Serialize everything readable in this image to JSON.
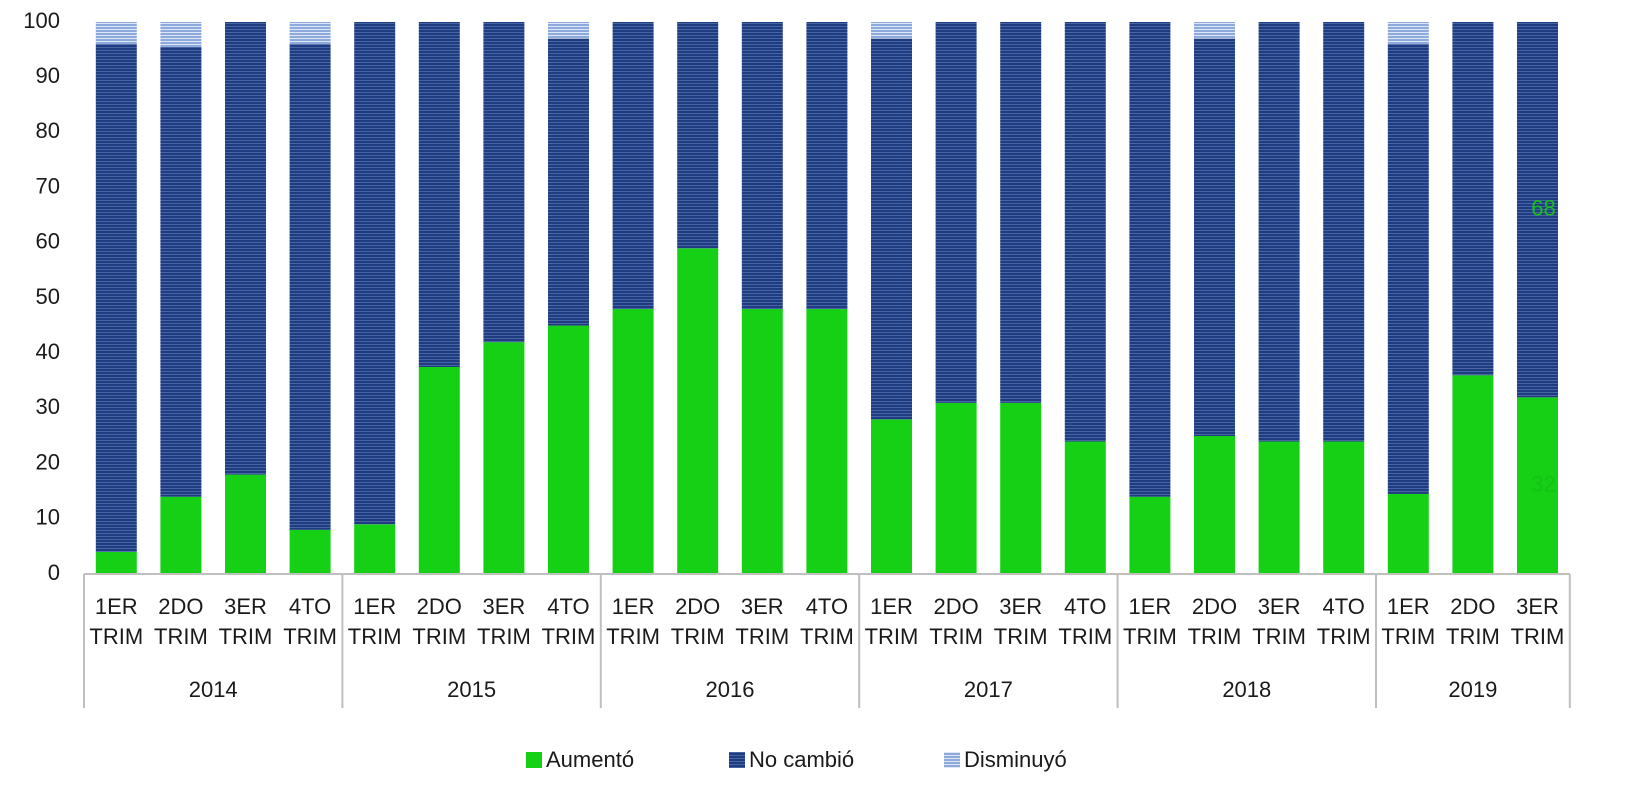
{
  "chart_data": {
    "type": "stacked_bar",
    "groups": [
      {
        "name": "2014",
        "categories": [
          "1ER TRIM",
          "2DO TRIM",
          "3ER TRIM",
          "4TO TRIM"
        ]
      },
      {
        "name": "2015",
        "categories": [
          "1ER TRIM",
          "2DO TRIM",
          "3ER TRIM",
          "4TO TRIM"
        ]
      },
      {
        "name": "2016",
        "categories": [
          "1ER TRIM",
          "2DO TRIM",
          "3ER TRIM",
          "4TO TRIM"
        ]
      },
      {
        "name": "2017",
        "categories": [
          "1ER TRIM",
          "2DO TRIM",
          "3ER TRIM",
          "4TO TRIM"
        ]
      },
      {
        "name": "2018",
        "categories": [
          "1ER TRIM",
          "2DO TRIM",
          "3ER TRIM",
          "4TO TRIM"
        ]
      },
      {
        "name": "2019",
        "categories": [
          "1ER TRIM",
          "2DO TRIM",
          "3ER TRIM"
        ]
      }
    ],
    "series": [
      {
        "name": "Aumentó",
        "color": "#16d016",
        "values": [
          4,
          14,
          18,
          8,
          9,
          37.5,
          42,
          45,
          48,
          59,
          48,
          48,
          28,
          31,
          31,
          24,
          14,
          25,
          24,
          24,
          14.5,
          36,
          32
        ],
        "value_labels": [
          null,
          null,
          null,
          null,
          null,
          null,
          null,
          null,
          null,
          null,
          null,
          null,
          null,
          null,
          null,
          null,
          null,
          null,
          null,
          null,
          null,
          null,
          "32"
        ],
        "label_color": "#16c016"
      },
      {
        "name": "No cambió",
        "color": "#1f3c80",
        "values": [
          92,
          81.5,
          82,
          88,
          91,
          62.5,
          58,
          52,
          52,
          41,
          52,
          52,
          69,
          69,
          69,
          76,
          86,
          72,
          76,
          76,
          81.5,
          64,
          68
        ],
        "value_labels": [
          null,
          null,
          null,
          null,
          null,
          null,
          null,
          null,
          null,
          null,
          null,
          null,
          null,
          null,
          null,
          null,
          null,
          null,
          null,
          null,
          null,
          null,
          "68"
        ],
        "label_color": "#16c016"
      },
      {
        "name": "Disminuyó",
        "color": "#8eaadc",
        "values": [
          4,
          4.5,
          0,
          4,
          0,
          0,
          0,
          3,
          0,
          0,
          0,
          0,
          3,
          0,
          0,
          0,
          0,
          3,
          0,
          0,
          4,
          0,
          0
        ]
      }
    ],
    "ylim": [
      0,
      100
    ],
    "yticks": [
      0,
      10,
      20,
      30,
      40,
      50,
      60,
      70,
      80,
      90,
      100
    ],
    "grid": false,
    "legend": "bottom"
  }
}
